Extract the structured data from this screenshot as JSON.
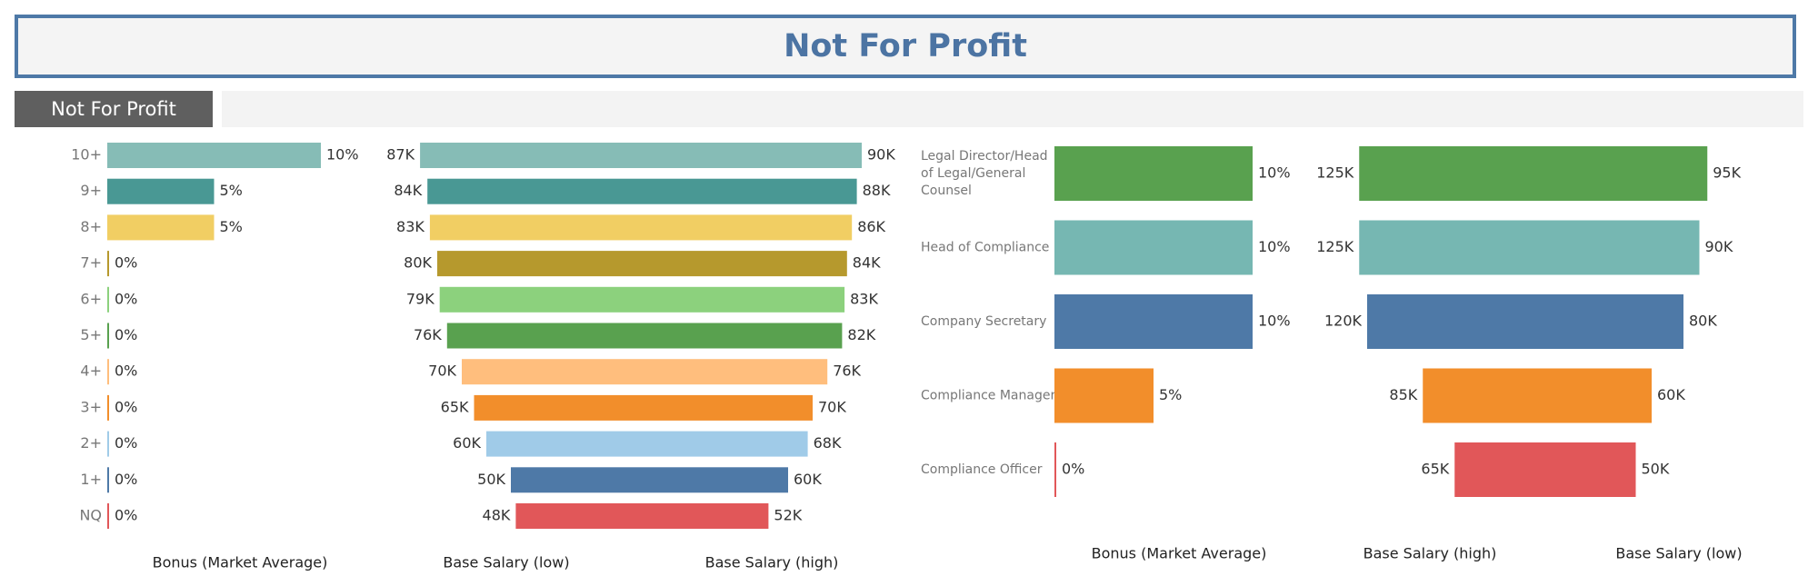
{
  "header": {
    "title": "Not For Profit"
  },
  "filter_tab": {
    "label": "Not For Profit"
  },
  "chart_data": [
    {
      "type": "bar",
      "name": "experience-bonus",
      "orientation": "horizontal",
      "categories": [
        "10+",
        "9+",
        "8+",
        "7+",
        "6+",
        "5+",
        "4+",
        "3+",
        "2+",
        "1+",
        "NQ"
      ],
      "values": [
        10,
        5,
        5,
        0,
        0,
        0,
        0,
        0,
        0,
        0,
        0
      ],
      "value_labels": [
        "10%",
        "5%",
        "5%",
        "0%",
        "0%",
        "0%",
        "0%",
        "0%",
        "0%",
        "0%",
        "0%"
      ],
      "xlim": [
        0,
        10
      ],
      "colors": [
        "#86bcb6",
        "#499894",
        "#f1ce63",
        "#b6992d",
        "#8cd17d",
        "#59a14f",
        "#ffbe7d",
        "#f28e2b",
        "#a0cbe8",
        "#4e79a7",
        "#e15759"
      ],
      "xlabel": "Bonus (Market Average)",
      "grid": false
    },
    {
      "type": "bar",
      "name": "experience-base-salary",
      "orientation": "horizontal-diverging",
      "categories": [
        "10+",
        "9+",
        "8+",
        "7+",
        "6+",
        "5+",
        "4+",
        "3+",
        "2+",
        "1+",
        "NQ"
      ],
      "series": [
        {
          "name": "Base Salary (low)",
          "values": [
            87,
            84,
            83,
            80,
            79,
            76,
            70,
            65,
            60,
            50,
            48
          ],
          "labels": [
            "87K",
            "84K",
            "83K",
            "80K",
            "79K",
            "76K",
            "70K",
            "65K",
            "60K",
            "50K",
            "48K"
          ]
        },
        {
          "name": "Base Salary (high)",
          "values": [
            90,
            88,
            86,
            84,
            83,
            82,
            76,
            70,
            68,
            60,
            52
          ],
          "labels": [
            "90K",
            "88K",
            "86K",
            "84K",
            "83K",
            "82K",
            "76K",
            "70K",
            "68K",
            "60K",
            "52K"
          ]
        }
      ],
      "colors": [
        "#86bcb6",
        "#499894",
        "#f1ce63",
        "#b6992d",
        "#8cd17d",
        "#59a14f",
        "#ffbe7d",
        "#f28e2b",
        "#a0cbe8",
        "#4e79a7",
        "#e15759"
      ],
      "xlabels": [
        "Base Salary (low)",
        "Base Salary (high)"
      ],
      "grid": false
    },
    {
      "type": "bar",
      "name": "role-bonus",
      "orientation": "horizontal",
      "categories": [
        "Legal Director/Head of Legal/General Counsel",
        "Head of Compliance",
        "Company Secretary",
        "Compliance Manager",
        "Compliance Officer"
      ],
      "category_lines": [
        [
          "Legal Director/Head",
          "of Legal/General",
          "Counsel"
        ],
        [
          "Head of Compliance"
        ],
        [
          "Company Secretary"
        ],
        [
          "Compliance Manager"
        ],
        [
          "Compliance Officer"
        ]
      ],
      "values": [
        10,
        10,
        10,
        5,
        0
      ],
      "value_labels": [
        "10%",
        "10%",
        "10%",
        "5%",
        "0%"
      ],
      "xlim": [
        0,
        10
      ],
      "colors": [
        "#59a14f",
        "#76b7b2",
        "#4e79a7",
        "#f28e2b",
        "#e15759"
      ],
      "xlabel": "Bonus (Market Average)",
      "grid": false
    },
    {
      "type": "bar",
      "name": "role-base-salary",
      "orientation": "horizontal-diverging",
      "categories": [
        "Legal Director/Head of Legal/General Counsel",
        "Head of Compliance",
        "Company Secretary",
        "Compliance Manager",
        "Compliance Officer"
      ],
      "series": [
        {
          "name": "Base Salary (high)",
          "values": [
            125,
            125,
            120,
            85,
            65
          ],
          "labels": [
            "125K",
            "125K",
            "120K",
            "85K",
            "65K"
          ]
        },
        {
          "name": "Base Salary (low)",
          "values": [
            95,
            90,
            80,
            60,
            50
          ],
          "labels": [
            "95K",
            "90K",
            "80K",
            "60K",
            "50K"
          ]
        }
      ],
      "colors": [
        "#59a14f",
        "#76b7b2",
        "#4e79a7",
        "#f28e2b",
        "#e15759"
      ],
      "xlabels": [
        "Base Salary (high)",
        "Base Salary (low)"
      ],
      "grid": false
    }
  ]
}
